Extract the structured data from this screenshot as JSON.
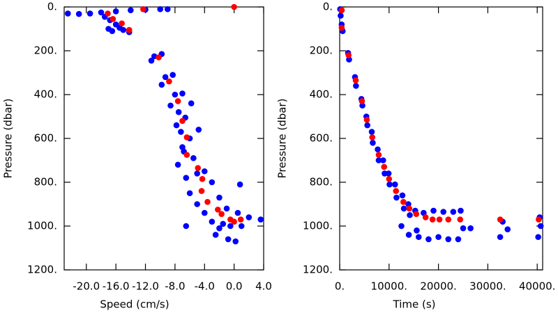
{
  "chart_data": [
    {
      "type": "scatter",
      "xlabel": "Speed (cm/s)",
      "ylabel": "Pressure (dbar)",
      "xlim": [
        -23,
        4
      ],
      "ylim": [
        0,
        1200
      ],
      "y_inverted": true,
      "xticks": [
        {
          "value": -20,
          "label": "-20.0"
        },
        {
          "value": -16,
          "label": "-16.0"
        },
        {
          "value": -12,
          "label": "-12.0"
        },
        {
          "value": -8,
          "label": "-8.0"
        },
        {
          "value": -4,
          "label": "-4.0"
        },
        {
          "value": 0,
          "label": "0.0"
        },
        {
          "value": 4,
          "label": "4.0"
        }
      ],
      "yticks": [
        {
          "value": 0,
          "label": "0."
        },
        {
          "value": 200,
          "label": "200."
        },
        {
          "value": 400,
          "label": "400."
        },
        {
          "value": 600,
          "label": "600."
        },
        {
          "value": 800,
          "label": "800."
        },
        {
          "value": 1000,
          "label": "1000."
        },
        {
          "value": 1200,
          "label": "1200."
        }
      ],
      "series": [
        {
          "color": "#0000ff",
          "x": [
            -22.5,
            -21,
            -19.5,
            -18,
            -16,
            -14,
            -12,
            -10,
            -9,
            -17.5,
            -16.8,
            -16,
            -15.5,
            -15,
            -14.2,
            -17,
            -16.5,
            -10.8,
            -9.8,
            -11.2,
            -9.3,
            -8.3,
            -9.8,
            -8,
            -7,
            -8.6,
            -5.8,
            -7.5,
            -6.6,
            -7.8,
            -4.8,
            -7.2,
            -6,
            -7,
            -6.8,
            -5.5,
            -7.6,
            -5,
            -4,
            -6.5,
            -3,
            -6,
            -2,
            -5,
            -1,
            -6.5,
            -3,
            -1.5,
            -0.5,
            0.5,
            1,
            2,
            3.6,
            0.8,
            -2.5,
            -0.8,
            0.2,
            -4,
            -2
          ],
          "values": [
            30,
            32,
            30,
            25,
            20,
            15,
            12,
            10,
            10,
            45,
            60,
            80,
            95,
            105,
            115,
            100,
            110,
            225,
            215,
            245,
            320,
            310,
            355,
            400,
            395,
            450,
            440,
            480,
            505,
            540,
            560,
            570,
            600,
            640,
            660,
            690,
            720,
            760,
            750,
            780,
            800,
            850,
            870,
            900,
            920,
            1000,
            980,
            990,
            1000,
            940,
            1000,
            960,
            970,
            810,
            1040,
            1060,
            1070,
            940,
            1010
          ]
        },
        {
          "color": "#ff0000",
          "x": [
            -12.3,
            0,
            -17.1,
            -16.4,
            -15.2,
            -14.2,
            -10.2,
            -8.8,
            -7.6,
            -7,
            -6.4,
            -6.4,
            -4.9,
            -4.3,
            -4.4,
            -3.6,
            -2.2,
            -1.7,
            -0.5,
            0,
            0.9
          ],
          "values": [
            10,
            0,
            30,
            55,
            75,
            105,
            230,
            340,
            430,
            520,
            595,
            675,
            735,
            785,
            840,
            890,
            925,
            945,
            970,
            980,
            970
          ]
        }
      ]
    },
    {
      "type": "scatter",
      "xlabel": "Time (s)",
      "ylabel": "Pressure (dbar)",
      "xlim": [
        0,
        41100
      ],
      "ylim": [
        0,
        1200
      ],
      "y_inverted": true,
      "xticks": [
        {
          "value": 0,
          "label": "0."
        },
        {
          "value": 10000,
          "label": "10000."
        },
        {
          "value": 20000,
          "label": "20000."
        },
        {
          "value": 30000,
          "label": "30000."
        },
        {
          "value": 40000,
          "label": "40000."
        }
      ],
      "yticks": [
        {
          "value": 0,
          "label": "0."
        },
        {
          "value": 200,
          "label": "200."
        },
        {
          "value": 400,
          "label": "400."
        },
        {
          "value": 600,
          "label": "600."
        },
        {
          "value": 800,
          "label": "800."
        },
        {
          "value": 1000,
          "label": "1000."
        },
        {
          "value": 1200,
          "label": "1200."
        }
      ],
      "series": [
        {
          "color": "#0000ff",
          "x": [
            100,
            200,
            400,
            600,
            1700,
            1900,
            3100,
            3300,
            4400,
            4600,
            5400,
            5600,
            6500,
            6700,
            7700,
            7900,
            8800,
            9100,
            9900,
            10100,
            11200,
            11500,
            12700,
            13000,
            13900,
            14200,
            15300,
            15600,
            12500,
            14000,
            16000,
            18000,
            20000,
            22000,
            24000,
            25000,
            17000,
            19000,
            21000,
            23000,
            24500,
            26500,
            32500,
            33000,
            34000,
            40200,
            40500,
            40700
          ],
          "values": [
            10,
            40,
            80,
            110,
            210,
            240,
            320,
            360,
            420,
            450,
            500,
            540,
            570,
            620,
            650,
            700,
            700,
            760,
            760,
            810,
            810,
            870,
            860,
            920,
            900,
            950,
            930,
            1020,
            1000,
            1040,
            1050,
            1060,
            1050,
            1060,
            1060,
            1010,
            940,
            930,
            935,
            935,
            930,
            1010,
            1050,
            980,
            1015,
            1050,
            960,
            1000
          ]
        },
        {
          "color": "#ff0000",
          "x": [
            420,
            400,
            1800,
            3250,
            4500,
            5500,
            6600,
            7900,
            9000,
            10000,
            11400,
            12900,
            14100,
            15500,
            17400,
            18800,
            20200,
            22000,
            24400,
            32500,
            40300
          ],
          "values": [
            15,
            95,
            220,
            335,
            430,
            515,
            595,
            675,
            730,
            785,
            840,
            890,
            920,
            945,
            960,
            970,
            970,
            970,
            970,
            970,
            970
          ]
        }
      ]
    }
  ]
}
